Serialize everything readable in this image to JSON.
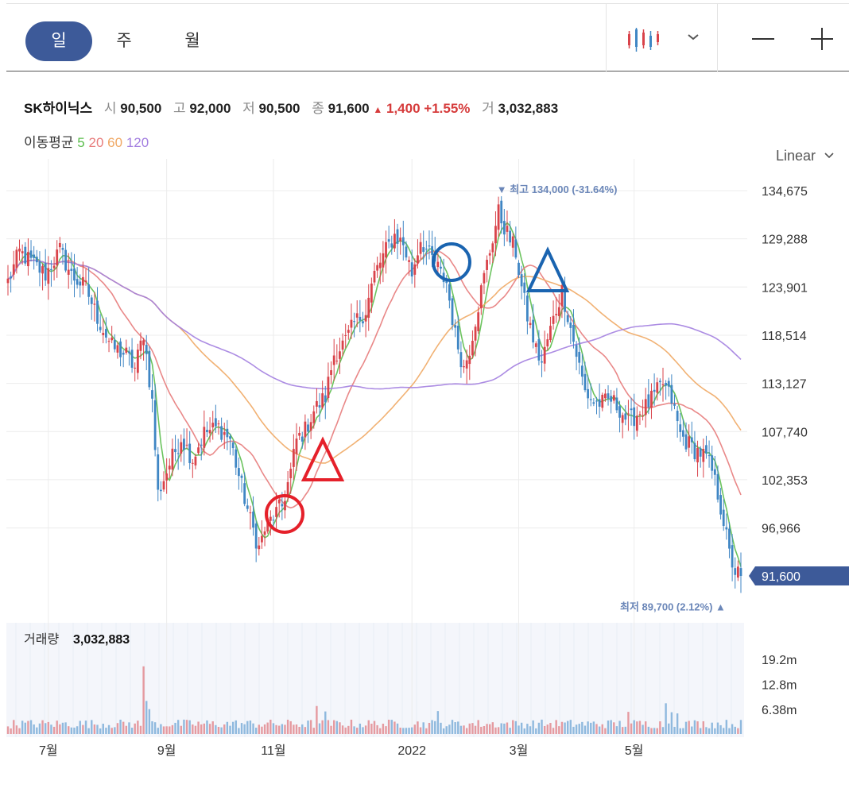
{
  "toolbar": {
    "tabs": [
      "일",
      "주",
      "월"
    ],
    "active_tab": "일",
    "zoom_out": "—",
    "zoom_in": "+"
  },
  "info": {
    "name": "SK하이닉스",
    "open_label": "시",
    "open": "90,500",
    "high_label": "고",
    "high": "92,000",
    "low_label": "저",
    "low": "90,500",
    "close_label": "종",
    "close": "91,600",
    "change": "1,400",
    "change_pct": "+1.55%",
    "volume_label": "거",
    "volume": "3,032,883"
  },
  "ma": {
    "label": "이동평균",
    "periods": [
      "5",
      "20",
      "60",
      "120"
    ],
    "colors": [
      "#5bbd4c",
      "#e77b7b",
      "#f0a864",
      "#a37fe0"
    ]
  },
  "scale_label": "Linear",
  "colors": {
    "up": "#d9434a",
    "down": "#3f86c4",
    "accent": "#3d5a99",
    "grid": "#ececec"
  },
  "chart_data": {
    "type": "candlestick",
    "y_ticks": [
      "134,675",
      "129,288",
      "123,901",
      "118,514",
      "113,127",
      "107,740",
      "102,353",
      "96,966"
    ],
    "ylim": [
      91000,
      135500
    ],
    "x_ticks": [
      "7월",
      "9월",
      "11월",
      "2022",
      "3월",
      "5월"
    ],
    "x_tick_index": [
      14,
      55,
      92,
      140,
      177,
      217
    ],
    "current_price": "91,600",
    "current_value": 91600,
    "high_annotation": "최고 134,000 (-31.64%)",
    "high_value": 134000,
    "high_index": 170,
    "low_annotation": "최저 89,700 (2.12%)",
    "low_value": 89700,
    "close_anchors": [
      [
        0,
        124500
      ],
      [
        4,
        127800
      ],
      [
        8,
        126700
      ],
      [
        13,
        125300
      ],
      [
        18,
        128000
      ],
      [
        22,
        125200
      ],
      [
        27,
        123800
      ],
      [
        31,
        120500
      ],
      [
        36,
        117200
      ],
      [
        41,
        116300
      ],
      [
        44,
        114800
      ],
      [
        47,
        118800
      ],
      [
        50,
        111000
      ],
      [
        52,
        100800
      ],
      [
        56,
        104100
      ],
      [
        60,
        107100
      ],
      [
        64,
        104700
      ],
      [
        68,
        107600
      ],
      [
        73,
        108200
      ],
      [
        77,
        106900
      ],
      [
        80,
        102800
      ],
      [
        84,
        97800
      ],
      [
        87,
        94700
      ],
      [
        89,
        96800
      ],
      [
        92,
        98300
      ],
      [
        95,
        99400
      ],
      [
        98,
        103200
      ],
      [
        100,
        106800
      ],
      [
        103,
        107900
      ],
      [
        106,
        110100
      ],
      [
        110,
        111600
      ],
      [
        113,
        116400
      ],
      [
        117,
        117800
      ],
      [
        120,
        119800
      ],
      [
        124,
        121300
      ],
      [
        127,
        125300
      ],
      [
        131,
        128000
      ],
      [
        134,
        129700
      ],
      [
        137,
        128700
      ],
      [
        140,
        125400
      ],
      [
        143,
        129300
      ],
      [
        146,
        127400
      ],
      [
        148,
        126700
      ],
      [
        150,
        125300
      ],
      [
        152,
        124400
      ],
      [
        155,
        118500
      ],
      [
        158,
        114800
      ],
      [
        160,
        117100
      ],
      [
        162,
        120300
      ],
      [
        164,
        123500
      ],
      [
        167,
        128000
      ],
      [
        170,
        132200
      ],
      [
        173,
        129900
      ],
      [
        176,
        127800
      ],
      [
        178,
        123800
      ],
      [
        180,
        120600
      ],
      [
        183,
        116900
      ],
      [
        185,
        115400
      ],
      [
        187,
        118000
      ],
      [
        190,
        121400
      ],
      [
        192,
        123500
      ],
      [
        194,
        120800
      ],
      [
        197,
        116400
      ],
      [
        200,
        112200
      ],
      [
        203,
        111000
      ],
      [
        206,
        110900
      ],
      [
        209,
        111300
      ],
      [
        212,
        110300
      ],
      [
        215,
        108800
      ],
      [
        218,
        109700
      ],
      [
        221,
        110500
      ],
      [
        224,
        111700
      ],
      [
        227,
        113100
      ],
      [
        230,
        111300
      ],
      [
        233,
        107400
      ],
      [
        236,
        106300
      ],
      [
        238,
        105700
      ],
      [
        240,
        105400
      ],
      [
        242,
        104800
      ],
      [
        244,
        103300
      ],
      [
        246,
        100800
      ],
      [
        248,
        97800
      ],
      [
        250,
        94000
      ],
      [
        252,
        92100
      ],
      [
        254,
        91600
      ]
    ],
    "volume": {
      "label": "거래량",
      "value": "3,032,883",
      "ticks": [
        "19.2m",
        "12.8m",
        "6.38m"
      ],
      "tick_values": [
        19200000,
        12800000,
        6380000
      ],
      "typical": 2600000,
      "spikes": [
        [
          47,
          17400000
        ],
        [
          48,
          8500000
        ],
        [
          49,
          6400000
        ],
        [
          107,
          7200000
        ],
        [
          110,
          5800000
        ],
        [
          149,
          5900000
        ],
        [
          215,
          5700000
        ],
        [
          228,
          7900000
        ],
        [
          230,
          5600000
        ],
        [
          232,
          5300000
        ]
      ]
    }
  }
}
